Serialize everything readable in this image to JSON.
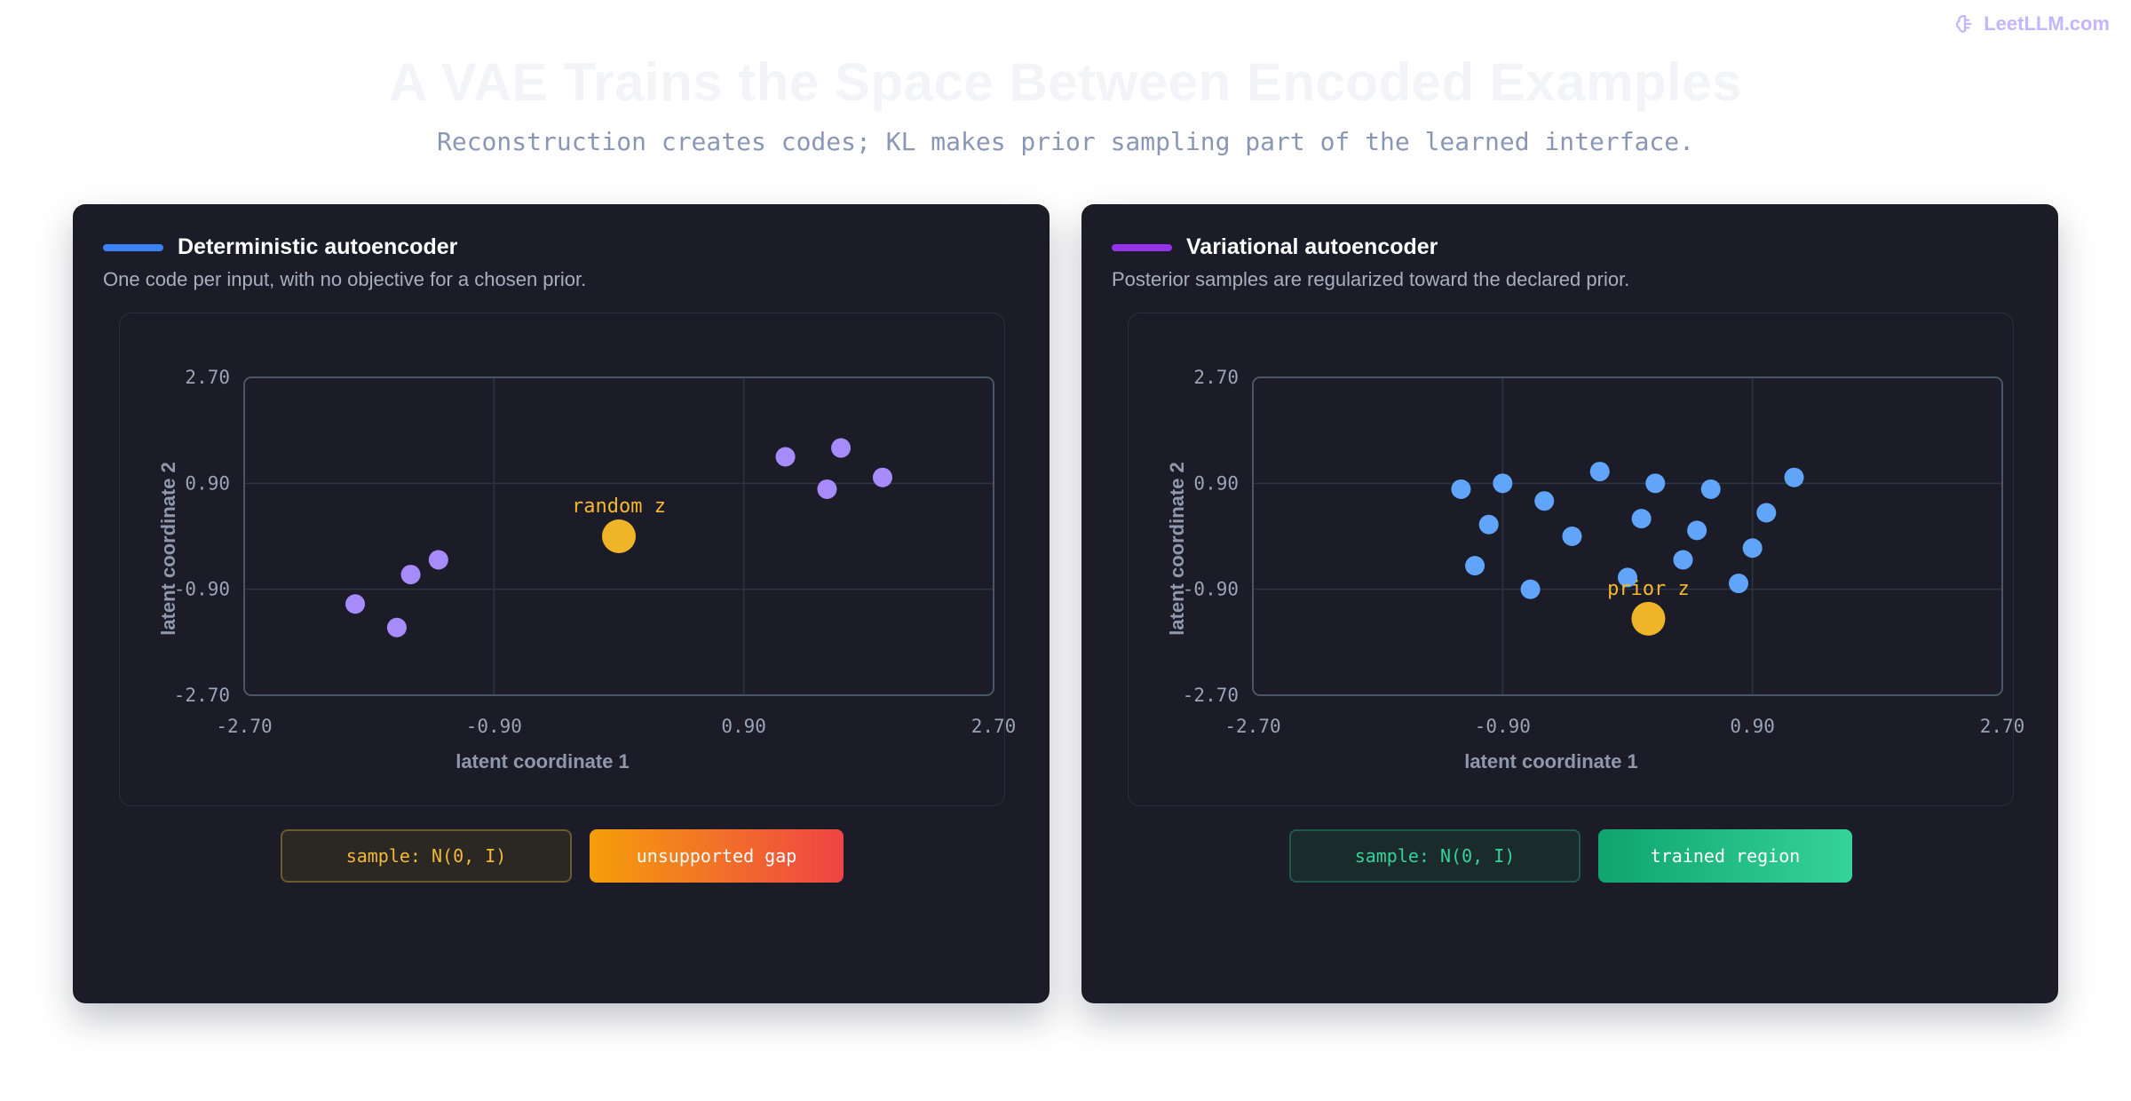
{
  "brand": {
    "name": "LeetLLM.com",
    "color": "#c4b5fd"
  },
  "page": {
    "title": "A VAE Trains the Space Between Encoded Examples",
    "subtitle": "Reconstruction creates codes; KL makes prior sampling part of the learned interface."
  },
  "panels": [
    {
      "title": "Deterministic autoencoder",
      "description": "One code per input, with no objective for a chosen prior.",
      "accent_color": "#3b82f6",
      "buttons": {
        "sample_label": "sample: N(0, I)",
        "region_label": "unsupported gap"
      }
    },
    {
      "title": "Variational autoencoder",
      "description": "Posterior samples are regularized toward the declared prior.",
      "accent_color": "#9333ea",
      "buttons": {
        "sample_label": "sample: N(0, I)",
        "region_label": "trained region"
      }
    }
  ],
  "chart_data": [
    {
      "type": "scatter",
      "xlabel": "latent coordinate 1",
      "ylabel": "latent coordinate 2",
      "xlim": [
        -2.7,
        2.7
      ],
      "ylim": [
        -2.7,
        2.7
      ],
      "xticks": [
        "-2.70",
        "-0.90",
        "0.90",
        "2.70"
      ],
      "yticks": [
        "2.70",
        "0.90",
        "-0.90",
        "-2.70"
      ],
      "grid": true,
      "series": [
        {
          "color": "#a78bfa",
          "points": [
            [
              -1.9,
              -1.15
            ],
            [
              -1.5,
              -0.65
            ],
            [
              -1.3,
              -0.4
            ],
            [
              -1.6,
              -1.55
            ],
            [
              1.2,
              1.35
            ],
            [
              1.6,
              1.5
            ],
            [
              1.5,
              0.8
            ],
            [
              1.9,
              1.0
            ]
          ]
        },
        {
          "color": "#f0b429",
          "points": [
            [
              0.0,
              0.0
            ]
          ],
          "annotation": "random z"
        }
      ]
    },
    {
      "type": "scatter",
      "xlabel": "latent coordinate 1",
      "ylabel": "latent coordinate 2",
      "xlim": [
        -2.7,
        2.7
      ],
      "ylim": [
        -2.7,
        2.7
      ],
      "xticks": [
        "-2.70",
        "-0.90",
        "0.90",
        "2.70"
      ],
      "yticks": [
        "2.70",
        "0.90",
        "-0.90",
        "-2.70"
      ],
      "grid": true,
      "series": [
        {
          "color": "#60a5fa",
          "points": [
            [
              -1.2,
              0.8
            ],
            [
              -1.0,
              0.2
            ],
            [
              -0.9,
              0.9
            ],
            [
              -0.6,
              0.6
            ],
            [
              -0.2,
              1.1
            ],
            [
              0.2,
              0.9
            ],
            [
              0.6,
              0.8
            ],
            [
              1.0,
              0.4
            ],
            [
              1.2,
              1.0
            ],
            [
              -1.1,
              -0.5
            ],
            [
              -0.4,
              0.0
            ],
            [
              0.1,
              0.3
            ],
            [
              0.5,
              0.1
            ],
            [
              0.9,
              -0.2
            ],
            [
              -0.7,
              -0.9
            ],
            [
              0.0,
              -0.7
            ],
            [
              0.4,
              -0.4
            ],
            [
              0.8,
              -0.8
            ]
          ]
        },
        {
          "color": "#f0b429",
          "points": [
            [
              0.15,
              -1.4
            ]
          ],
          "annotation": "prior z"
        }
      ]
    }
  ]
}
